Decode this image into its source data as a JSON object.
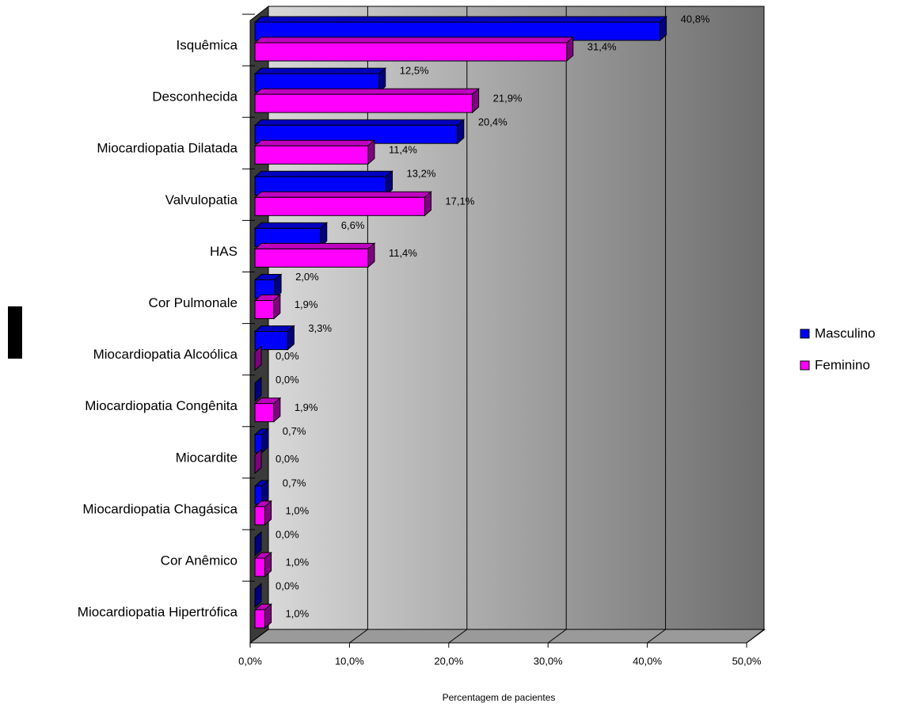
{
  "chart_data": {
    "type": "bar3d-horizontal",
    "x_label": "Percentagem de pacientes",
    "categories": [
      "Isquêmica",
      "Desconhecida",
      "Miocardiopatia Dilatada",
      "Valvulopatia",
      "HAS",
      "Cor Pulmonale",
      "Miocardiopatia Alcoólica",
      "Miocardiopatia Congênita",
      "Miocardite",
      "Miocardiopatia Chagásica",
      "Cor Anêmico",
      "Miocardiopatia Hipertrófica"
    ],
    "series": [
      {
        "name": "Masculino",
        "color": "#0000ff",
        "values": [
          40.8,
          12.5,
          20.4,
          13.2,
          6.6,
          2.0,
          3.3,
          0.0,
          0.7,
          0.7,
          0.0,
          0.0
        ],
        "value_labels": [
          "40,8%",
          "12,5%",
          "20,4%",
          "13,2%",
          "6,6%",
          "2,0%",
          "3,3%",
          "0,0%",
          "0,7%",
          "0,7%",
          "0,0%",
          "0,0%"
        ]
      },
      {
        "name": "Feminino",
        "color": "#ff00ff",
        "values": [
          31.4,
          21.9,
          11.4,
          17.1,
          11.4,
          1.9,
          0.0,
          1.9,
          0.0,
          1.0,
          1.0,
          1.0
        ],
        "value_labels": [
          "31,4%",
          "21,9%",
          "11,4%",
          "17,1%",
          "11,4%",
          "1,9%",
          "0,0%",
          "1,9%",
          "0,0%",
          "1,0%",
          "1,0%",
          "1,0%"
        ]
      }
    ],
    "xlim": [
      0,
      50
    ],
    "xticks": [
      {
        "value": 0,
        "label": "0,0%"
      },
      {
        "value": 10,
        "label": "10,0%"
      },
      {
        "value": 20,
        "label": "20,0%"
      },
      {
        "value": 30,
        "label": "30,0%"
      },
      {
        "value": 40,
        "label": "40,0%"
      },
      {
        "value": 50,
        "label": "50,0%"
      }
    ],
    "grid": true,
    "legend": "right"
  }
}
